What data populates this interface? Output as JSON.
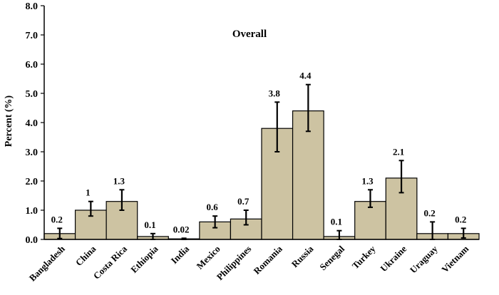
{
  "chart_data": {
    "type": "bar",
    "title": "Overall",
    "xlabel": "",
    "ylabel": "Percent (%)",
    "ylim": [
      0,
      8
    ],
    "yticks": [
      "0.0",
      "1.0",
      "2.0",
      "3.0",
      "4.0",
      "5.0",
      "6.0",
      "7.0",
      "8.0"
    ],
    "grid": false,
    "legend": "none",
    "bar_color": "#cdc3a2",
    "categories": [
      "Bangladesh",
      "China",
      "Costa Rica",
      "Ethiopia",
      "India",
      "Mexico",
      "Philippines",
      "Romania",
      "Russia",
      "Senegal",
      "Turkey",
      "Ukraine",
      "Uraguay",
      "Vietnam"
    ],
    "values": [
      0.2,
      1,
      1.3,
      0.1,
      0.02,
      0.6,
      0.7,
      3.8,
      4.4,
      0.1,
      1.3,
      2.1,
      0.2,
      0.2
    ],
    "value_labels": [
      "0.2",
      "1",
      "1.3",
      "0.1",
      "0.02",
      "0.6",
      "0.7",
      "3.8",
      "4.4",
      "0.1",
      "1.3",
      "2.1",
      "0.2",
      "0.2"
    ],
    "error_low": [
      0.03,
      0.8,
      1.0,
      0.0,
      0.0,
      0.4,
      0.5,
      3.0,
      3.7,
      0.0,
      1.1,
      1.6,
      0.0,
      0.05
    ],
    "error_high": [
      0.38,
      1.3,
      1.7,
      0.2,
      0.04,
      0.8,
      1.0,
      4.7,
      5.3,
      0.3,
      1.7,
      2.7,
      0.6,
      0.38
    ]
  }
}
